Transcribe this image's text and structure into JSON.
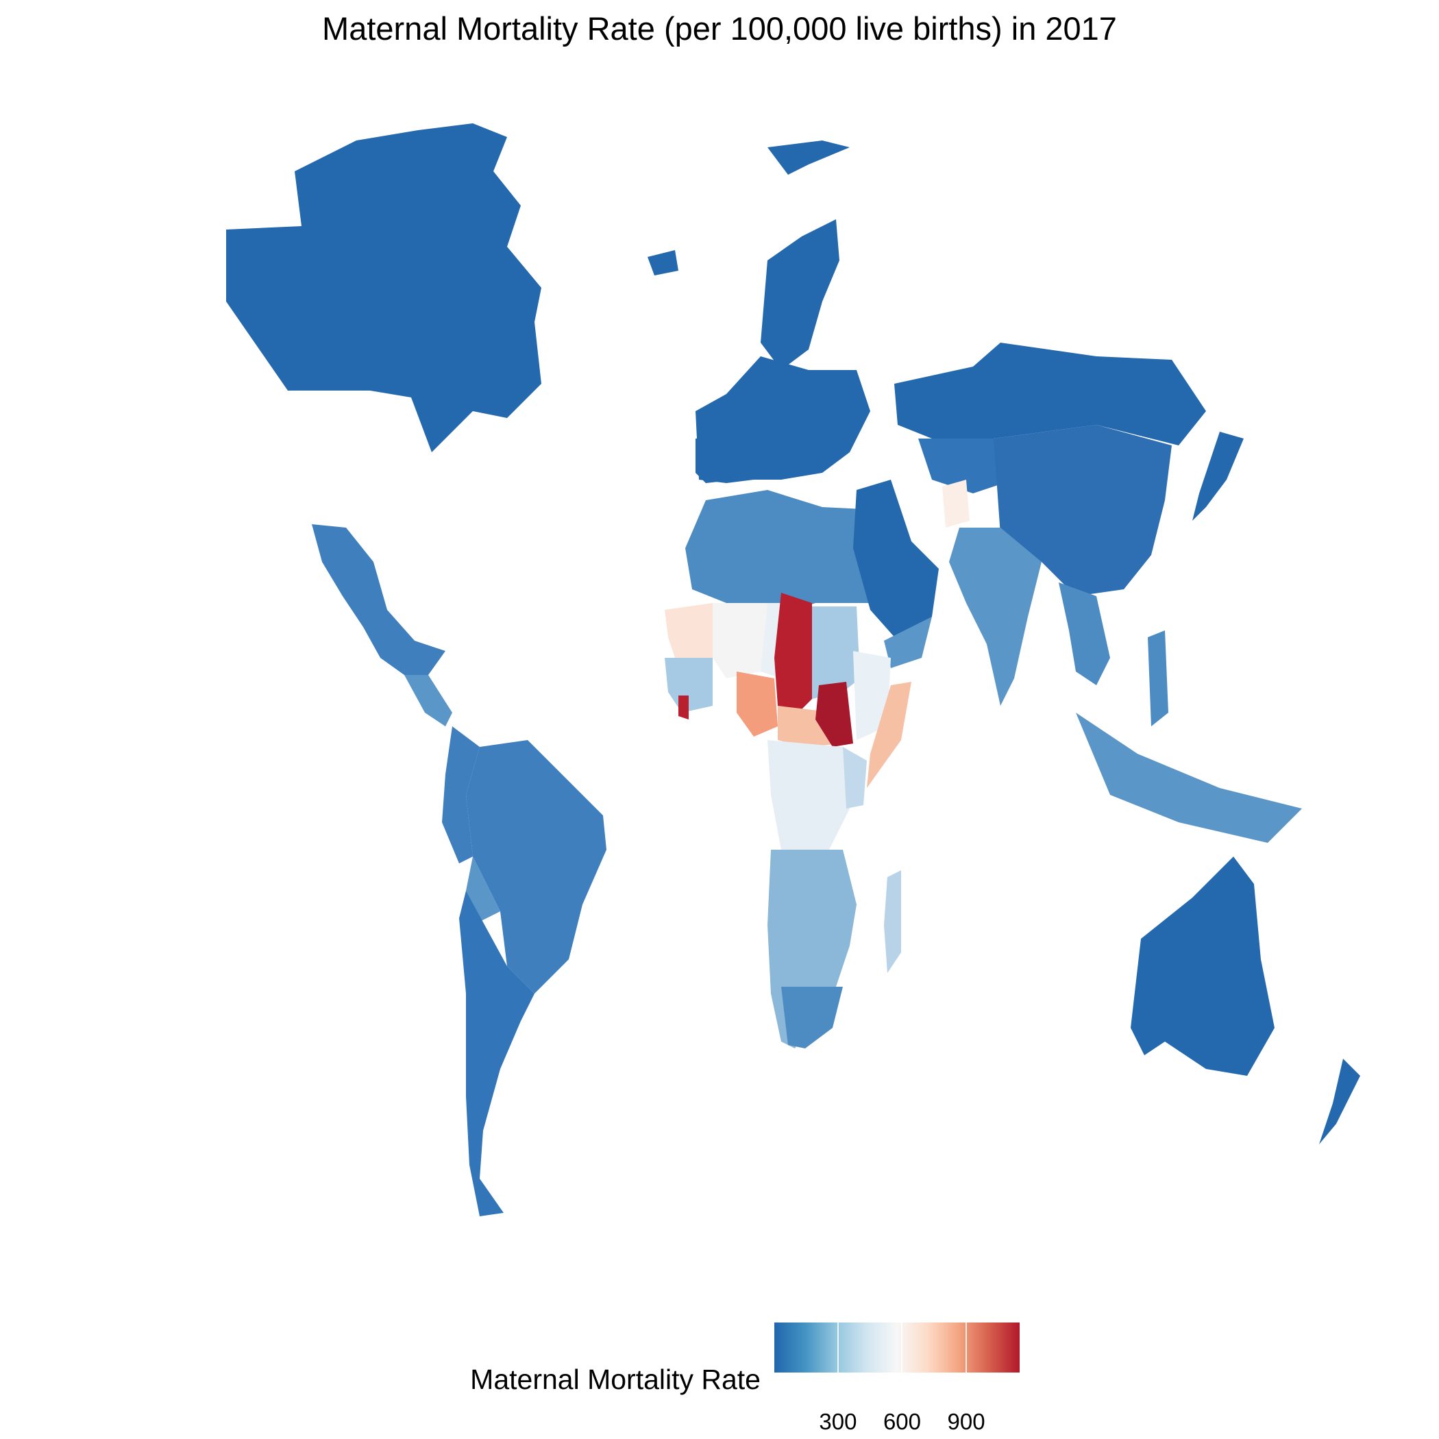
{
  "title": "Maternal Mortality Rate (per 100,000 live births) in 2017",
  "legend": {
    "title": "Maternal Mortality Rate",
    "ticks": [
      "300",
      "600",
      "900"
    ],
    "tick_values": [
      300,
      600,
      900
    ],
    "range": [
      2,
      1150
    ],
    "colors": [
      "#2166ac",
      "#4393c3",
      "#92c5de",
      "#d1e5f0",
      "#f7f7f7",
      "#fddbc7",
      "#f4a582",
      "#d6604d",
      "#b2182b"
    ]
  },
  "palette": {
    "very_low": "#2469ad",
    "low": "#3f7fbd",
    "low_mid": "#5b96c8",
    "mid_low": "#a6cae3",
    "mid": "#e9f1f7",
    "mid_high": "#fbe3d7",
    "high": "#f39d7c",
    "very_high": "#b8202f"
  }
}
